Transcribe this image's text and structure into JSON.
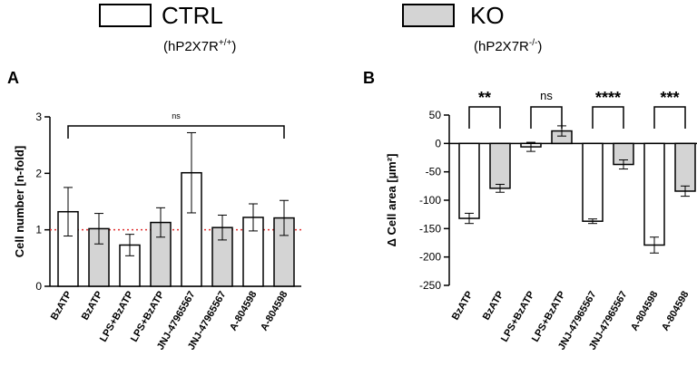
{
  "legend": {
    "ctrl": {
      "label": "CTRL",
      "sub_base": "(hP2X7R",
      "sub_sup": "+/+",
      "sub_close": ")",
      "fill": "#ffffff"
    },
    "ko": {
      "label": "KO",
      "sub_base": "(hP2X7R",
      "sub_sup": "-/-",
      "sub_close": ")",
      "fill": "#d4d4d4"
    }
  },
  "panels": {
    "a": "A",
    "b": "B"
  },
  "chart_data": [
    {
      "type": "bar",
      "panel": "A",
      "ylabel": "Cell number [n-fold]",
      "ylim": [
        0,
        3
      ],
      "yticks": [
        0,
        1,
        2,
        3
      ],
      "categories": [
        "BzATP",
        "BzATP",
        "LPS+BzATP",
        "LPS+BzATP",
        "JNJ-47965567",
        "JNJ-47965567",
        "A-804598",
        "A-804598"
      ],
      "groups": [
        "CTRL",
        "KO",
        "CTRL",
        "KO",
        "CTRL",
        "KO",
        "CTRL",
        "KO"
      ],
      "values": [
        1.32,
        1.02,
        0.73,
        1.13,
        2.01,
        1.04,
        1.22,
        1.21
      ],
      "errors": [
        0.43,
        0.27,
        0.19,
        0.26,
        0.71,
        0.22,
        0.24,
        0.31
      ],
      "reference_line": 1,
      "significance": [
        {
          "from": 0,
          "to": 7,
          "label": "ns"
        }
      ]
    },
    {
      "type": "bar",
      "panel": "B",
      "ylabel": "Δ Cell area [µm²]",
      "ylim": [
        -250,
        50
      ],
      "yticks": [
        50,
        0,
        -50,
        -100,
        -150,
        -200,
        -250
      ],
      "categories": [
        "BzATP",
        "BzATP",
        "LPS+BzATP",
        "LPS+BzATP",
        "JNJ-47965567",
        "JNJ-47965567",
        "A-804598",
        "A-804598"
      ],
      "groups": [
        "CTRL",
        "KO",
        "CTRL",
        "KO",
        "CTRL",
        "KO",
        "CTRL",
        "KO"
      ],
      "values": [
        -132,
        -79,
        -6,
        22,
        -137,
        -37,
        -179,
        -84
      ],
      "errors": [
        9,
        7,
        8,
        9,
        4,
        8,
        14,
        9
      ],
      "significance": [
        {
          "from": 0,
          "to": 1,
          "label": "**"
        },
        {
          "from": 2,
          "to": 3,
          "label": "ns"
        },
        {
          "from": 4,
          "to": 5,
          "label": "****"
        },
        {
          "from": 6,
          "to": 7,
          "label": "***"
        }
      ]
    }
  ]
}
